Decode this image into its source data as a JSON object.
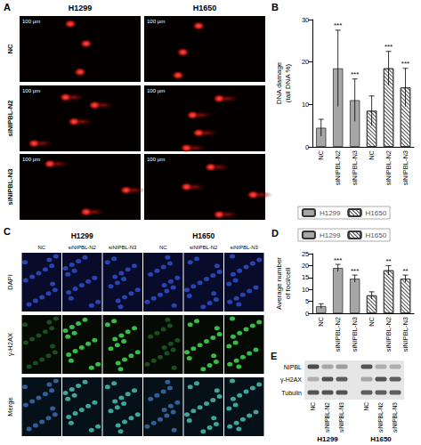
{
  "chart_data": [
    {
      "type": "bar",
      "panel": "B",
      "categories": [
        "NC",
        "siNIPBL-N2",
        "siNIPBL-N3",
        "NC",
        "siNIPBL-N2",
        "siNIPBL-N3"
      ],
      "y_label": "DNA damage\n(tail DNA %)",
      "ylim": [
        0,
        30
      ],
      "yticks": [
        0,
        10,
        20,
        30
      ],
      "legend": "bottom",
      "series": [
        {
          "name": "H1299",
          "color": "#a6a6a6",
          "values": [
            4.5,
            18.5,
            11,
            null,
            null,
            null
          ],
          "errors": [
            2,
            9,
            5,
            null,
            null,
            null
          ],
          "significance": [
            null,
            "***",
            "***",
            null,
            null,
            null
          ]
        },
        {
          "name": "H1650",
          "color": "#ffffff",
          "values": [
            null,
            null,
            null,
            8.5,
            18.5,
            14
          ],
          "errors": [
            null,
            null,
            null,
            3.5,
            4,
            4.5
          ],
          "significance": [
            null,
            null,
            null,
            null,
            "***",
            "***"
          ]
        }
      ]
    },
    {
      "type": "bar",
      "panel": "D",
      "categories": [
        "NC",
        "siNIPBL-N2",
        "siNIPBL-N3",
        "NC",
        "siNIPBL-N2",
        "siNIPBL-N3"
      ],
      "y_label": "Average number\nof foci/cell",
      "ylim": [
        0,
        25
      ],
      "yticks": [
        0,
        5,
        10,
        15,
        20,
        25
      ],
      "legend": "top",
      "series": [
        {
          "name": "H1299",
          "color": "#a6a6a6",
          "values": [
            3,
            19,
            14.5,
            null,
            null,
            null
          ],
          "errors": [
            1,
            1.5,
            1.5,
            null,
            null,
            null
          ],
          "significance": [
            null,
            "***",
            "***",
            null,
            null,
            null
          ]
        },
        {
          "name": "H1650",
          "color": "#ffffff",
          "values": [
            null,
            null,
            null,
            7.5,
            18,
            14.5
          ],
          "errors": [
            null,
            null,
            null,
            1.5,
            2,
            1.5
          ],
          "significance": [
            null,
            null,
            null,
            null,
            "**",
            "**"
          ]
        }
      ]
    }
  ],
  "figure": {
    "A": {
      "label": "A",
      "columns": [
        "H1299",
        "H1650"
      ],
      "rows": [
        "NC",
        "siNIPBL-N2",
        "siNIPBL-N3"
      ],
      "scale_bar": "100 µm"
    },
    "C": {
      "label": "C",
      "columns": [
        "H1299",
        "H1650"
      ],
      "conditions": [
        "NC",
        "siNIPBL-N2",
        "siNIPBL-N3"
      ],
      "rows": [
        "DAPI",
        "γ-H2AX",
        "Merge"
      ]
    },
    "E": {
      "label": "E",
      "bands": [
        "NIPBL",
        "γ-H2AX",
        "Tubulin"
      ],
      "lanes": [
        "NC",
        "siNIPBL-N2",
        "siNIPBL-N3"
      ],
      "groups": [
        "H1299",
        "H1650"
      ]
    }
  }
}
